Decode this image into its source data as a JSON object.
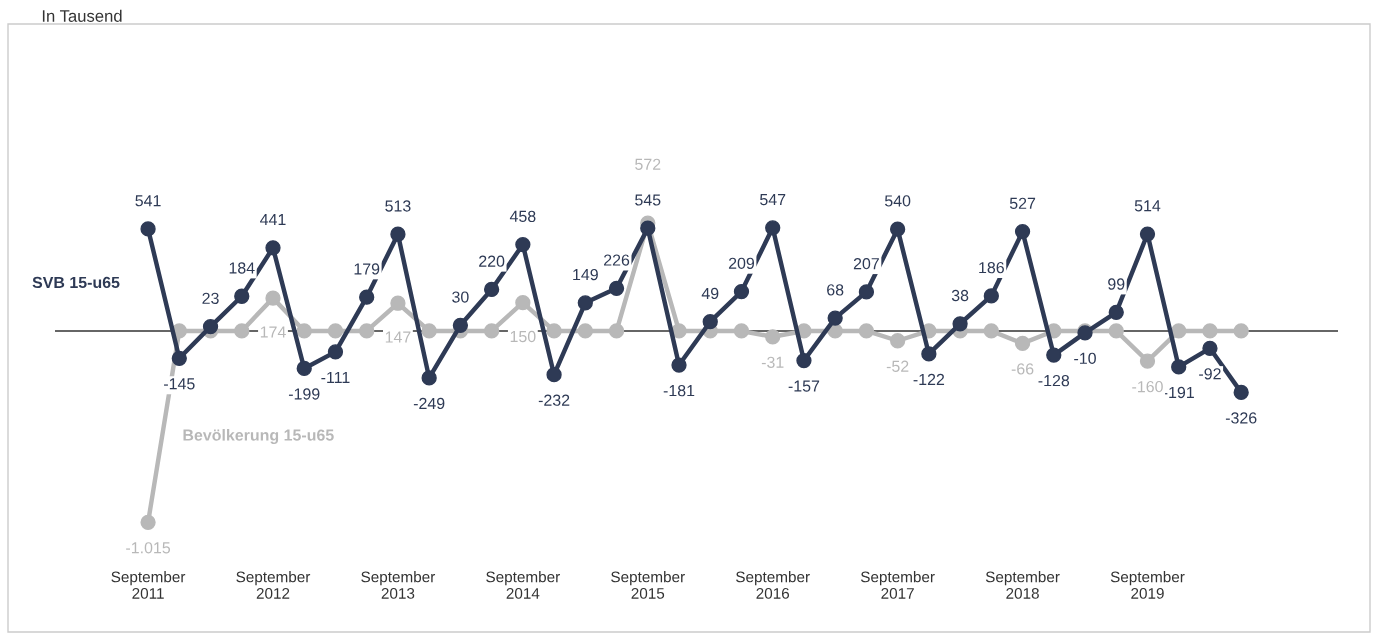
{
  "chart_data": {
    "type": "line",
    "title": "In Tausend",
    "categories": [
      "September\n2011",
      null,
      null,
      null,
      "September\n2012",
      null,
      null,
      null,
      "September\n2013",
      null,
      null,
      null,
      "September\n2014",
      null,
      null,
      null,
      "September\n2015",
      null,
      null,
      null,
      "September\n2016",
      null,
      null,
      null,
      "September\n2017",
      null,
      null,
      null,
      "September\n2018",
      null,
      null,
      null,
      "September\n2019",
      null,
      null,
      null
    ],
    "series": [
      {
        "name": "SVB 15-u65",
        "color": "#2e3a55",
        "values": [
          541,
          -145,
          23,
          184,
          441,
          -199,
          -111,
          179,
          513,
          -249,
          30,
          220,
          458,
          -232,
          149,
          226,
          545,
          -181,
          49,
          209,
          547,
          -157,
          68,
          207,
          540,
          -122,
          38,
          186,
          527,
          -128,
          -10,
          99,
          514,
          -191,
          -92,
          -326
        ]
      },
      {
        "name": "Bevölkerung 15-u65",
        "color": "#b8b8b8",
        "values": [
          -1015,
          0,
          0,
          0,
          174,
          0,
          0,
          0,
          147,
          0,
          0,
          0,
          150,
          0,
          0,
          0,
          572,
          0,
          0,
          0,
          -31,
          0,
          0,
          0,
          -52,
          0,
          0,
          0,
          -66,
          0,
          0,
          0,
          -160,
          0,
          0,
          0
        ],
        "value_labels": [
          "-1.015",
          null,
          null,
          null,
          "174",
          null,
          null,
          null,
          "147",
          null,
          null,
          null,
          "150",
          null,
          null,
          null,
          "572",
          null,
          null,
          null,
          "-31",
          null,
          null,
          null,
          "-52",
          null,
          null,
          null,
          "-66",
          null,
          null,
          null,
          "-160",
          null,
          null,
          null
        ]
      }
    ],
    "data_labels": true,
    "marker": "circle",
    "line_style": "solid",
    "grid": false,
    "legend": false,
    "ref_lines": [
      {
        "axis": "y",
        "value": 0,
        "color": "#333333"
      }
    ]
  }
}
